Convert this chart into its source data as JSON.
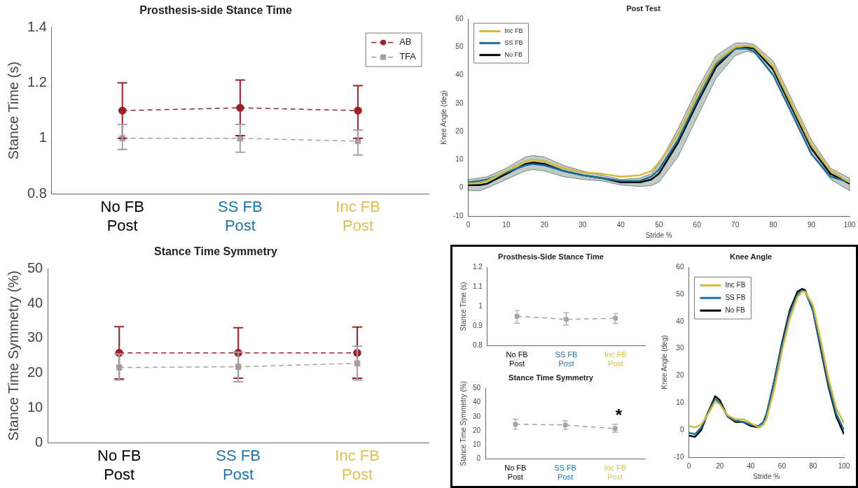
{
  "chart_data": [
    {
      "type": "line",
      "title": "Prosthesis-side Stance Time",
      "ylabel": "Stance Time (s)",
      "categories": [
        "No FB Post",
        "SS FB Post",
        "Inc FB Post"
      ],
      "ylim": [
        0.8,
        1.4
      ],
      "yticks": [
        0.8,
        1,
        1.2,
        1.4
      ],
      "legend": "top right",
      "line_style": "dashed",
      "series": [
        {
          "name": "AB",
          "color": "#9b2226",
          "marker": "circle",
          "values": [
            1.1,
            1.11,
            1.1
          ],
          "errors": [
            [
              1.0,
              1.2
            ],
            [
              1.01,
              1.21
            ],
            [
              1.0,
              1.19
            ]
          ]
        },
        {
          "name": "TFA",
          "color": "#aaa0a0",
          "marker": "square",
          "values": [
            1.0,
            1.0,
            0.99
          ],
          "errors": [
            [
              0.96,
              1.05
            ],
            [
              0.95,
              1.05
            ],
            [
              0.94,
              1.03
            ]
          ]
        }
      ]
    },
    {
      "type": "line",
      "title": "Stance Time Symmetry",
      "ylabel": "Stance Time Symmetry (%)",
      "categories": [
        "No FB Post",
        "SS FB Post",
        "Inc FB Post"
      ],
      "ylim": [
        0,
        50
      ],
      "yticks": [
        0,
        10,
        20,
        30,
        40,
        50
      ],
      "line_style": "dashed",
      "series": [
        {
          "color": "#9b2226",
          "marker": "circle",
          "values": [
            25.8,
            25.8,
            25.8
          ],
          "errors": [
            [
              18.3,
              33.3
            ],
            [
              18.5,
              33
            ],
            [
              18.5,
              33.2
            ]
          ]
        },
        {
          "color": "#aaa0a0",
          "marker": "square",
          "values": [
            21.6,
            21.8,
            22.8
          ],
          "errors": [
            [
              18,
              25.5
            ],
            [
              17.5,
              26
            ],
            [
              18,
              27.7
            ]
          ]
        }
      ]
    },
    {
      "type": "line",
      "title": "Post Test",
      "xlabel": "Stride %",
      "ylabel": "Knee Angle (deg)",
      "xlim": [
        0,
        100
      ],
      "xticks": [
        0,
        10,
        20,
        30,
        40,
        50,
        60,
        70,
        80,
        90,
        100
      ],
      "ylim": [
        -10,
        60
      ],
      "yticks": [
        -10,
        0,
        10,
        20,
        30,
        40,
        50,
        60
      ],
      "legend": "top left",
      "marker": "none",
      "series": [
        {
          "name": "Inc FB",
          "color": "#d4b83a",
          "x": [
            0,
            3,
            5,
            10,
            15,
            17,
            20,
            25,
            30,
            35,
            40,
            45,
            48,
            50,
            55,
            60,
            65,
            70,
            73,
            75,
            80,
            85,
            90,
            95,
            100
          ],
          "values": [
            1.5,
            1.8,
            2.5,
            6,
            9.5,
            10,
            9.5,
            7,
            5.5,
            5,
            4,
            4.5,
            6,
            9,
            19,
            33,
            45,
            50,
            50.5,
            50,
            43,
            29,
            15,
            6,
            2
          ]
        },
        {
          "name": "SS FB",
          "color": "#1b6f9c",
          "x": [
            0,
            3,
            5,
            10,
            15,
            17,
            20,
            25,
            30,
            35,
            40,
            45,
            48,
            50,
            55,
            60,
            65,
            70,
            73,
            75,
            80,
            85,
            90,
            95,
            100
          ],
          "values": [
            2,
            2.5,
            3,
            5.5,
            8,
            8.5,
            8,
            6,
            4.5,
            3.5,
            2.5,
            2.5,
            4,
            6.5,
            17,
            31,
            44,
            49.5,
            49.5,
            48.5,
            40,
            26,
            12,
            4,
            2
          ]
        },
        {
          "name": "No FB",
          "color": "#000000",
          "x": [
            0,
            3,
            5,
            10,
            15,
            17,
            20,
            25,
            30,
            35,
            40,
            45,
            48,
            50,
            55,
            60,
            65,
            70,
            73,
            75,
            80,
            85,
            90,
            95,
            100
          ],
          "values": [
            1,
            1,
            1.5,
            5,
            8.5,
            9,
            8.5,
            6,
            4.5,
            3.5,
            2,
            2,
            3,
            5,
            16,
            30,
            43,
            49.5,
            50,
            49.5,
            42,
            28,
            14,
            5,
            1.5
          ],
          "lower": [
            -1,
            -1,
            0,
            3,
            6,
            6.5,
            6,
            4,
            3,
            2.5,
            1,
            0.5,
            0.8,
            2,
            11,
            25,
            39,
            47,
            48.5,
            48,
            40,
            26,
            12,
            3,
            -1
          ],
          "upper": [
            3,
            3.5,
            4,
            7,
            11,
            11.5,
            11,
            8,
            6,
            4.5,
            3,
            3.5,
            5,
            8.5,
            21,
            35,
            47,
            51.5,
            51.5,
            51,
            45,
            31,
            17,
            7,
            3.5
          ]
        }
      ]
    },
    {
      "type": "line",
      "title": "Prosthesis-Side Stance Time",
      "ylabel": "Stance Time (s)",
      "categories": [
        "No FB Post",
        "SS FB Post",
        "Inc FB Post"
      ],
      "ylim": [
        0.8,
        1.2
      ],
      "yticks": [
        0.8,
        0.9,
        1,
        1.1,
        1.2
      ],
      "line_style": "dashed",
      "series": [
        {
          "color": "#aaa0a0",
          "marker": "square",
          "values": [
            0.95,
            0.935,
            0.94
          ],
          "errors": [
            [
              0.915,
              0.98
            ],
            [
              0.905,
              0.968
            ],
            [
              0.915,
              0.965
            ]
          ]
        }
      ]
    },
    {
      "type": "line",
      "title": "Stance Time Symmetry",
      "ylabel": "Stance Time Symmetry (%)",
      "categories": [
        "No FB Post",
        "SS FB Post",
        "Inc FB Post"
      ],
      "ylim": [
        0,
        50
      ],
      "yticks": [
        0,
        10,
        20,
        30,
        40,
        50
      ],
      "line_style": "dashed",
      "annotations": [
        "*"
      ],
      "series": [
        {
          "color": "#aaa0a0",
          "marker": "square",
          "values": [
            24.5,
            24,
            21.5
          ],
          "errors": [
            [
              21,
              28
            ],
            [
              21,
              27
            ],
            [
              19,
              24.5
            ]
          ]
        }
      ]
    },
    {
      "type": "line",
      "title": "Knee Angle",
      "xlabel": "Stride %",
      "ylabel": "Knee Angle (deg)",
      "xlim": [
        0,
        100
      ],
      "xticks": [
        0,
        20,
        40,
        60,
        80,
        100
      ],
      "ylim": [
        -10,
        60
      ],
      "yticks": [
        -10,
        0,
        10,
        20,
        30,
        40,
        50,
        60
      ],
      "legend": "top left",
      "marker": "none",
      "series": [
        {
          "name": "Inc FB",
          "color": "#d4b83a",
          "x": [
            0,
            4,
            8,
            12,
            17,
            20,
            25,
            30,
            35,
            40,
            45,
            48,
            50,
            55,
            60,
            65,
            70,
            73,
            75,
            80,
            85,
            90,
            95,
            100
          ],
          "values": [
            1.5,
            1,
            2,
            5.5,
            10.5,
            9.5,
            5.5,
            4,
            4,
            2.5,
            1,
            2,
            4,
            15,
            29,
            41,
            49,
            51,
            51,
            46,
            33,
            19,
            8,
            2.5
          ]
        },
        {
          "name": "SS FB",
          "color": "#1b6f9c",
          "x": [
            0,
            4,
            8,
            12,
            17,
            20,
            25,
            30,
            35,
            40,
            45,
            48,
            50,
            55,
            60,
            65,
            70,
            73,
            75,
            80,
            85,
            90,
            95,
            100
          ],
          "values": [
            -1,
            -1.5,
            1,
            6,
            11.5,
            10,
            5,
            3.5,
            3,
            2,
            1.5,
            3,
            6,
            18,
            31,
            43,
            50,
            51.5,
            51,
            44,
            31,
            17,
            6,
            0
          ]
        },
        {
          "name": "No FB",
          "color": "#000000",
          "x": [
            0,
            4,
            8,
            12,
            17,
            20,
            25,
            30,
            35,
            40,
            45,
            48,
            50,
            55,
            60,
            65,
            70,
            73,
            75,
            80,
            85,
            90,
            95,
            100
          ],
          "values": [
            -2,
            -2.5,
            0,
            6,
            12.5,
            11,
            5,
            3,
            3,
            1.5,
            1,
            2,
            5,
            18,
            32,
            44,
            51,
            52,
            51.5,
            44,
            30,
            16,
            5,
            -1.5
          ]
        }
      ]
    }
  ]
}
